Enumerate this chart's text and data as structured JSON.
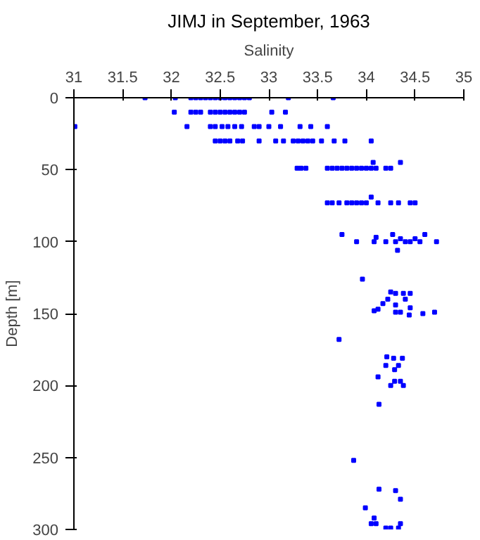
{
  "chart_data": {
    "type": "scatter",
    "title": "JIMJ in September, 1963",
    "xlabel": "Salinity",
    "ylabel": "Depth [m]",
    "xlim": [
      31,
      35
    ],
    "xticks": [
      31,
      31.5,
      32,
      32.5,
      33,
      33.5,
      34,
      34.5,
      35
    ],
    "ylim": [
      300,
      0
    ],
    "yticks": [
      0,
      50,
      100,
      150,
      200,
      250,
      300
    ],
    "grid": false,
    "marker": "square",
    "series": [
      {
        "color": "#0000ff",
        "x": [
          31.73,
          32.04,
          32.2,
          32.25,
          32.3,
          32.35,
          32.4,
          32.45,
          32.5,
          32.55,
          32.6,
          32.65,
          32.7,
          32.75,
          32.8,
          33.2,
          33.66,
          32.03,
          32.2,
          32.25,
          32.3,
          32.4,
          32.45,
          32.5,
          32.55,
          32.6,
          32.65,
          32.7,
          32.75,
          33.03,
          33.17,
          31.01,
          32.16,
          32.4,
          32.45,
          32.52,
          32.58,
          32.65,
          32.72,
          32.85,
          32.9,
          33.0,
          33.12,
          33.32,
          33.43,
          33.6,
          32.45,
          32.5,
          32.55,
          32.6,
          32.68,
          32.73,
          32.9,
          33.07,
          33.15,
          33.25,
          33.3,
          33.35,
          33.4,
          33.45,
          33.54,
          33.67,
          33.78,
          34.05,
          33.29,
          33.33,
          33.38,
          33.6,
          33.65,
          33.7,
          33.75,
          33.8,
          33.85,
          33.9,
          33.95,
          34.0,
          34.05,
          34.1,
          34.2,
          34.25,
          34.35,
          34.07,
          33.6,
          33.65,
          33.72,
          33.8,
          33.85,
          33.9,
          33.95,
          34.0,
          34.12,
          34.25,
          34.33,
          34.45,
          34.5,
          34.05,
          33.75,
          33.9,
          34.08,
          34.27,
          34.3,
          34.35,
          34.4,
          34.45,
          34.5,
          34.55,
          34.6,
          34.72,
          34.1,
          34.2,
          34.32,
          33.96,
          34.25,
          34.3,
          34.38,
          34.45,
          34.22,
          34.17,
          34.3,
          34.4,
          34.45,
          34.12,
          34.08,
          34.3,
          34.35,
          34.44,
          34.58,
          34.7,
          33.72,
          34.21,
          34.28,
          34.37,
          34.2,
          34.33,
          34.29,
          34.12,
          34.29,
          34.35,
          34.25,
          34.38,
          34.13,
          33.87,
          34.13,
          34.3,
          34.35,
          33.99,
          34.08,
          34.05,
          34.1,
          34.35,
          34.33,
          34.2,
          34.25
        ],
        "values": [
          0,
          0,
          0,
          0,
          0,
          0,
          0,
          0,
          0,
          0,
          0,
          0,
          0,
          0,
          0,
          0,
          0,
          10,
          10,
          10,
          10,
          10,
          10,
          10,
          10,
          10,
          10,
          10,
          10,
          10,
          10,
          20,
          20,
          20,
          20,
          20,
          20,
          20,
          20,
          20,
          20,
          20,
          20,
          20,
          20,
          20,
          30,
          30,
          30,
          30,
          30,
          30,
          30,
          30,
          30,
          30,
          30,
          30,
          30,
          30,
          30,
          30,
          30,
          30,
          49,
          49,
          49,
          49,
          49,
          49,
          49,
          49,
          49,
          49,
          49,
          49,
          49,
          49,
          49,
          49,
          45,
          45,
          73,
          73,
          73,
          73,
          73,
          73,
          73,
          73,
          73,
          73,
          73,
          73,
          73,
          69,
          95,
          100,
          100,
          95,
          100,
          98,
          100,
          100,
          98,
          100,
          95,
          100,
          97,
          100,
          106,
          126,
          135,
          136,
          136,
          136,
          140,
          143,
          144,
          140,
          146,
          147,
          148,
          149,
          149,
          151,
          150,
          149,
          168,
          180,
          181,
          181,
          186,
          186,
          189,
          194,
          197,
          197,
          200,
          200,
          213,
          252,
          272,
          273,
          279,
          285,
          292,
          296,
          296,
          296,
          299,
          299,
          299
        ]
      }
    ]
  }
}
